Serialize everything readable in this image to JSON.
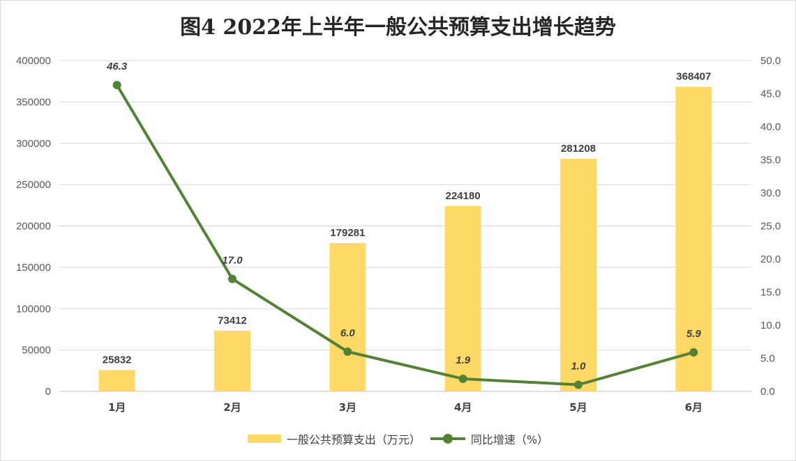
{
  "chart_data": {
    "type": "bar",
    "title": "图4  2022年上半年一般公共预算支出增长趋势",
    "categories": [
      "1月",
      "2月",
      "3月",
      "4月",
      "5月",
      "6月"
    ],
    "series": [
      {
        "name": "一般公共预算支出（万元）",
        "type": "bar",
        "axis": "left",
        "values": [
          25832,
          73412,
          179281,
          224180,
          281208,
          368407
        ],
        "labels": [
          "25832",
          "73412",
          "179281",
          "224180",
          "281208",
          "368407"
        ]
      },
      {
        "name": "同比增速（%）",
        "type": "line",
        "axis": "right",
        "values": [
          46.3,
          17.0,
          6.0,
          1.9,
          1.0,
          5.9
        ],
        "labels": [
          "46.3",
          "17.0",
          "6.0",
          "1.9",
          "1.0",
          "5.9"
        ]
      }
    ],
    "y_left": {
      "lim": [
        0,
        400000
      ],
      "ticks": [
        0,
        50000,
        100000,
        150000,
        200000,
        250000,
        300000,
        350000,
        400000
      ],
      "tick_labels": [
        "0",
        "50000",
        "100000",
        "150000",
        "200000",
        "250000",
        "300000",
        "350000",
        "400000"
      ]
    },
    "y_right": {
      "lim": [
        0,
        50
      ],
      "ticks": [
        0,
        5,
        10,
        15,
        20,
        25,
        30,
        35,
        40,
        45,
        50
      ],
      "tick_labels": [
        "0.0",
        "5.0",
        "10.0",
        "15.0",
        "20.0",
        "25.0",
        "30.0",
        "35.0",
        "40.0",
        "45.0",
        "50.0"
      ]
    },
    "grid": true,
    "legend_position": "bottom",
    "colors": {
      "bar": "#FFD966",
      "line": "#538135",
      "grid": "#d9d9d9",
      "axis": "#bfbfbf"
    }
  }
}
